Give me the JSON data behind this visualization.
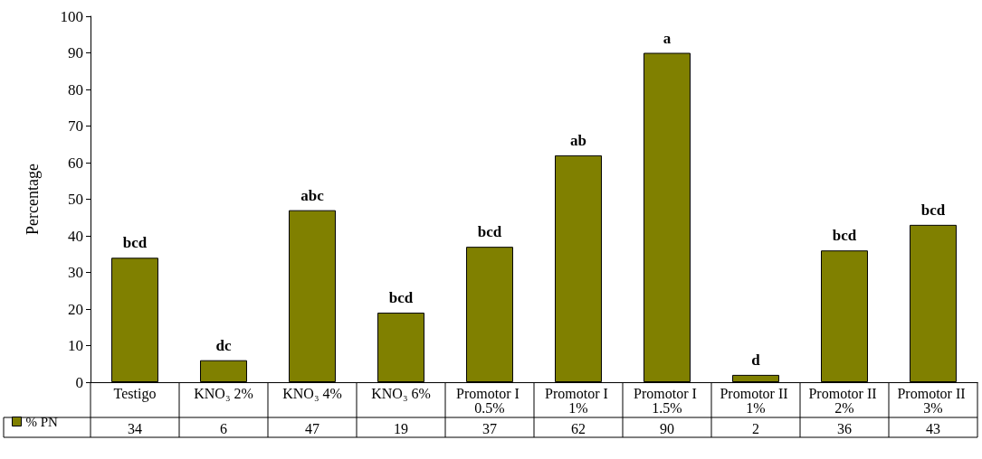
{
  "chart_data": {
    "type": "bar",
    "ylabel": "Percentage",
    "categories": [
      "Testigo",
      "KNO₃ 2%",
      "KNO₃ 4%",
      "KNO₃ 6%",
      "Promotor I 0.5%",
      "Promotor I 1%",
      "Promotor I 1.5%",
      "Promotor II 1%",
      "Promotor II 2%",
      "Promotor II 3%"
    ],
    "series": [
      {
        "name": "% PN",
        "color": "#808000",
        "values": [
          34,
          6,
          47,
          19,
          37,
          62,
          90,
          2,
          36,
          43
        ]
      }
    ],
    "ylim": [
      0,
      100
    ],
    "yticks": [
      0,
      10,
      20,
      30,
      40,
      50,
      60,
      70,
      80,
      90,
      100
    ],
    "data_labels": true,
    "grid": false,
    "legend": "bottom left",
    "annotations": [
      {
        "text": "bcd",
        "x": "Testigo",
        "y": 34
      },
      {
        "text": "dc",
        "x": "KNO₃ 2%",
        "y": 6
      },
      {
        "text": "abc",
        "x": "KNO₃ 4%",
        "y": 47
      },
      {
        "text": "bcd",
        "x": "KNO₃ 6%",
        "y": 19
      },
      {
        "text": "bcd",
        "x": "Promotor I 0.5%",
        "y": 37
      },
      {
        "text": "ab",
        "x": "Promotor I 1%",
        "y": 62
      },
      {
        "text": "a",
        "x": "Promotor I 1.5%",
        "y": 90
      },
      {
        "text": "d",
        "x": "Promotor II 1%",
        "y": 2
      },
      {
        "text": "bcd",
        "x": "Promotor II 2%",
        "y": 36
      },
      {
        "text": "bcd",
        "x": "Promotor II 3%",
        "y": 43
      }
    ]
  }
}
